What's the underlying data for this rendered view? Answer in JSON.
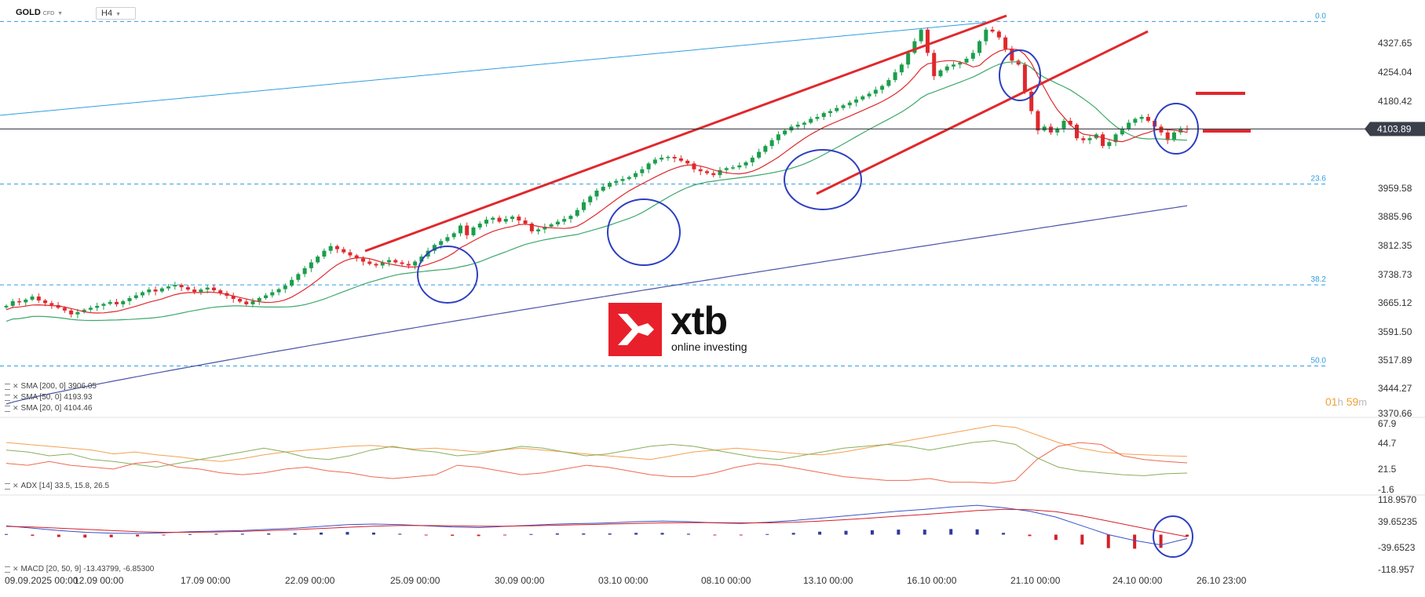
{
  "header": {
    "symbol": "GOLD",
    "symbol_tag": "CFD",
    "timeframe": "H4"
  },
  "colors": {
    "bull_candle": "#1b9e4b",
    "bear_candle": "#e0282c",
    "sma20": "#e0282c",
    "sma50": "#3da86a",
    "sma200": "#4a55a8",
    "fib_line": "#2f9ee0",
    "trend_line": "#e0282c",
    "highlight_circle": "#2d3fc0",
    "price_tag_bg": "#3a3f4a",
    "brand_red": "#e8202b",
    "timer": "#f0a030"
  },
  "indicators": {
    "sma200": {
      "label": "SMA [200, 0]",
      "value": "3906.05"
    },
    "sma50": {
      "label": "SMA [50, 0]",
      "value": "4193.93"
    },
    "sma20": {
      "label": "SMA [20, 0]",
      "value": "4104.46"
    },
    "adx": {
      "label": "ADX [14]",
      "values": "33.5, 15.8, 26.5"
    },
    "macd": {
      "label": "MACD [20, 50, 9]",
      "values": "-13.43799, -6.85300"
    }
  },
  "logo": {
    "word": "xtb",
    "tagline": "online investing"
  },
  "timer": {
    "h": "01",
    "h_unit": "h",
    "m": "59",
    "m_unit": "m"
  },
  "chart_data": [
    {
      "type": "candlestick",
      "title": "GOLD CFD, H4",
      "x_ticks": [
        "09.09.2025 00:00",
        "12.09 00:00",
        "17.09 00:00",
        "22.09 00:00",
        "25.09 00:00",
        "30.09 00:00",
        "03.10 00:00",
        "08.10 00:00",
        "13.10 00:00",
        "16.10 00:00",
        "21.10 00:00",
        "24.10 00:00",
        "26.10 23:00"
      ],
      "y_ticks": [
        "4327.65",
        "4254.04",
        "4180.42",
        "3959.58",
        "3885.96",
        "3812.35",
        "3738.73",
        "3665.12",
        "3591.50",
        "3517.89",
        "3444.27",
        "3370.66"
      ],
      "ylim": [
        3370.66,
        4400
      ],
      "current_price": "4103.89",
      "fib_levels": [
        {
          "label": "0.0",
          "price": 4381
        },
        {
          "label": "23.6",
          "price": 3962
        },
        {
          "label": "38.2",
          "price": 3702
        },
        {
          "label": "50.0",
          "price": 3493
        }
      ],
      "candles_close_path": [
        3648,
        3660,
        3657,
        3664,
        3672,
        3662,
        3655,
        3650,
        3643,
        3636,
        3626,
        3632,
        3638,
        3643,
        3648,
        3653,
        3658,
        3652,
        3660,
        3668,
        3675,
        3683,
        3690,
        3685,
        3693,
        3698,
        3702,
        3696,
        3690,
        3684,
        3690,
        3695,
        3688,
        3681,
        3674,
        3666,
        3659,
        3652,
        3660,
        3668,
        3675,
        3683,
        3691,
        3700,
        3715,
        3730,
        3745,
        3760,
        3775,
        3790,
        3802,
        3794,
        3786,
        3778,
        3770,
        3762,
        3756,
        3752,
        3760,
        3766,
        3760,
        3756,
        3752,
        3762,
        3775,
        3790,
        3805,
        3815,
        3825,
        3835,
        3855,
        3830,
        3850,
        3860,
        3870,
        3875,
        3865,
        3872,
        3878,
        3868,
        3860,
        3840,
        3845,
        3852,
        3858,
        3865,
        3872,
        3880,
        3895,
        3915,
        3930,
        3945,
        3955,
        3965,
        3970,
        3975,
        3980,
        3990,
        4000,
        4015,
        4025,
        4030,
        4032,
        4028,
        4022,
        4015,
        4000,
        3995,
        3990,
        3985,
        3998,
        4003,
        4005,
        4010,
        4018,
        4030,
        4045,
        4060,
        4075,
        4090,
        4100,
        4110,
        4115,
        4120,
        4130,
        4135,
        4145,
        4150,
        4158,
        4165,
        4172,
        4180,
        4188,
        4195,
        4205,
        4215,
        4230,
        4250,
        4270,
        4300,
        4330,
        4360,
        4300,
        4240,
        4255,
        4265,
        4270,
        4275,
        4285,
        4300,
        4330,
        4360,
        4355,
        4340,
        4310,
        4280,
        4270,
        4200,
        4150,
        4100,
        4110,
        4095,
        4105,
        4125,
        4115,
        4080,
        4075,
        4080,
        4090,
        4060,
        4070,
        4090,
        4105,
        4120,
        4130,
        4135,
        4125,
        4110,
        4095,
        4075,
        4095,
        4105,
        4102
      ]
    },
    {
      "type": "line",
      "title": "ADX [14]",
      "y_ticks": [
        "67.9",
        "44.7",
        "21.5",
        "-1.6"
      ],
      "ylim": [
        -1.6,
        67.9
      ],
      "series": [
        {
          "name": "ADX",
          "values": [
            48,
            46,
            44,
            42,
            40,
            36,
            38,
            35,
            33,
            30,
            28,
            31,
            35,
            38,
            40,
            42,
            44,
            45,
            43,
            41,
            42,
            40,
            38,
            40,
            42,
            40,
            38,
            36,
            34,
            32,
            30,
            34,
            38,
            40,
            42,
            40,
            38,
            36,
            35,
            38,
            42,
            46,
            50,
            54,
            58,
            62,
            66,
            64,
            56,
            48,
            42,
            38,
            36,
            35,
            34,
            33.5
          ]
        },
        {
          "name": "+DI",
          "values": [
            40,
            38,
            34,
            36,
            30,
            28,
            25,
            22,
            26,
            30,
            34,
            38,
            42,
            38,
            32,
            30,
            34,
            40,
            44,
            40,
            38,
            34,
            36,
            40,
            44,
            42,
            38,
            34,
            36,
            40,
            44,
            46,
            44,
            40,
            36,
            32,
            30,
            34,
            38,
            42,
            44,
            46,
            44,
            40,
            44,
            48,
            50,
            46,
            32,
            22,
            18,
            16,
            14,
            13,
            15,
            15.8
          ]
        },
        {
          "name": "-DI",
          "values": [
            26,
            24,
            28,
            24,
            22,
            20,
            26,
            28,
            22,
            20,
            16,
            14,
            16,
            20,
            22,
            18,
            16,
            12,
            10,
            12,
            14,
            24,
            22,
            18,
            14,
            16,
            20,
            24,
            22,
            18,
            14,
            12,
            12,
            16,
            22,
            26,
            24,
            20,
            16,
            12,
            10,
            8,
            8,
            10,
            6,
            6,
            5,
            8,
            30,
            44,
            48,
            46,
            34,
            30,
            28,
            26.5
          ]
        }
      ]
    },
    {
      "type": "bar+line",
      "title": "MACD [20, 50, 9]",
      "y_ticks": [
        "118.9570",
        "39.65235",
        "-39.6523",
        "-118.957"
      ],
      "ylim": [
        -118.957,
        118.957
      ],
      "series": [
        {
          "name": "MACD",
          "values": [
            30,
            22,
            14,
            8,
            5,
            4,
            6,
            10,
            12,
            14,
            18,
            22,
            28,
            34,
            36,
            34,
            30,
            26,
            24,
            28,
            32,
            36,
            38,
            40,
            44,
            46,
            44,
            40,
            38,
            42,
            48,
            56,
            64,
            72,
            80,
            86,
            94,
            100,
            92,
            80,
            60,
            30,
            0,
            -20,
            -35,
            -13.44
          ]
        },
        {
          "name": "Signal",
          "values": [
            28,
            26,
            22,
            18,
            14,
            10,
            8,
            8,
            9,
            11,
            14,
            17,
            21,
            25,
            29,
            31,
            31,
            30,
            29,
            29,
            30,
            32,
            34,
            36,
            38,
            40,
            41,
            41,
            40,
            40,
            42,
            46,
            51,
            57,
            63,
            69,
            75,
            82,
            86,
            85,
            78,
            64,
            46,
            28,
            10,
            -6.85
          ]
        },
        {
          "name": "Histogram",
          "values": [
            2,
            -4,
            -8,
            -10,
            -9,
            -6,
            -2,
            2,
            3,
            3,
            4,
            5,
            7,
            9,
            7,
            3,
            -1,
            -4,
            -5,
            -1,
            2,
            4,
            4,
            4,
            6,
            6,
            3,
            -1,
            -2,
            2,
            6,
            10,
            13,
            15,
            17,
            17,
            19,
            18,
            6,
            -5,
            -18,
            -34,
            -46,
            -48,
            -45,
            -6.6
          ]
        }
      ]
    }
  ]
}
